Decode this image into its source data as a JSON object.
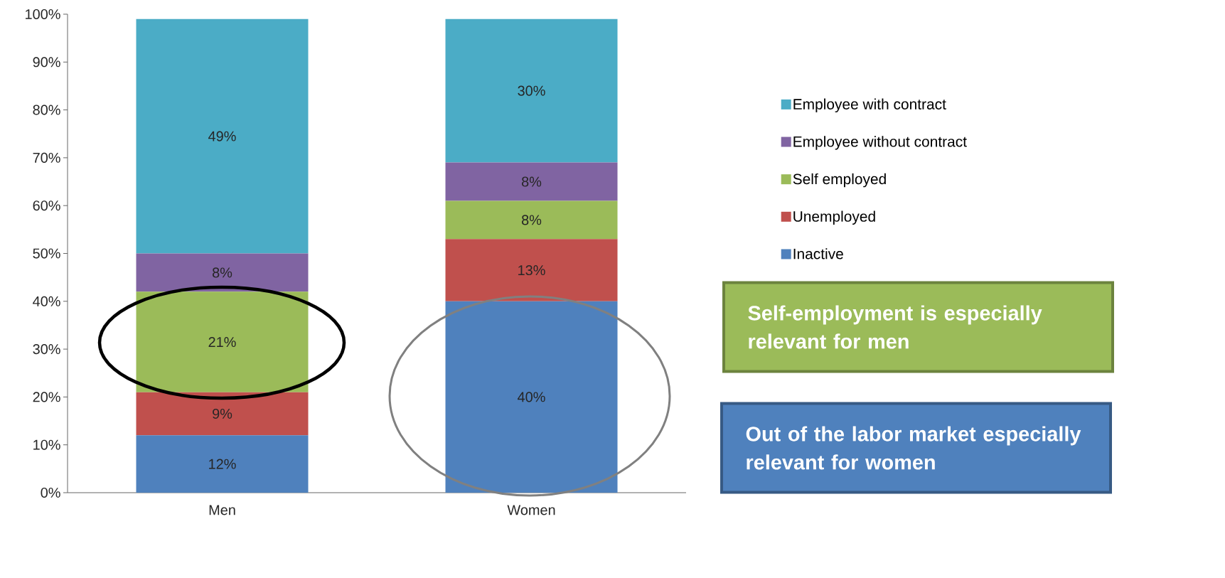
{
  "chart_data": {
    "type": "bar",
    "stacked": true,
    "categories": [
      "Men",
      "Women"
    ],
    "series": [
      {
        "name": "Inactive",
        "color": "#4f81bd",
        "values": [
          12,
          40
        ],
        "value_labels": [
          "12%",
          "40%"
        ]
      },
      {
        "name": "Unemployed",
        "color": "#c0504d",
        "values": [
          9,
          13
        ],
        "value_labels": [
          "9%",
          "13%"
        ]
      },
      {
        "name": "Self employed",
        "color": "#9bbb59",
        "values": [
          21,
          8
        ],
        "value_labels": [
          "21%",
          "8%"
        ]
      },
      {
        "name": "Employee without contract",
        "color": "#8064a2",
        "values": [
          8,
          8
        ],
        "value_labels": [
          "8%",
          "8%"
        ]
      },
      {
        "name": "Employee with contract",
        "color": "#4bacc6",
        "values": [
          49,
          30
        ],
        "value_labels": [
          "49%",
          "30%"
        ]
      }
    ],
    "ylim": [
      0,
      100
    ],
    "yticks": [
      {
        "value": 0,
        "label": "0%"
      },
      {
        "value": 10,
        "label": "10%"
      },
      {
        "value": 20,
        "label": "20%"
      },
      {
        "value": 30,
        "label": "30%"
      },
      {
        "value": 40,
        "label": "40%"
      },
      {
        "value": 50,
        "label": "50%"
      },
      {
        "value": 60,
        "label": "60%"
      },
      {
        "value": 70,
        "label": "70%"
      },
      {
        "value": 80,
        "label": "80%"
      },
      {
        "value": 90,
        "label": "90%"
      },
      {
        "value": 100,
        "label": "100%"
      }
    ],
    "legend": "right",
    "grid": false,
    "annotations": [
      "Self-employment is especially relevant for men",
      "Out of the labor market especially relevant for women"
    ]
  }
}
